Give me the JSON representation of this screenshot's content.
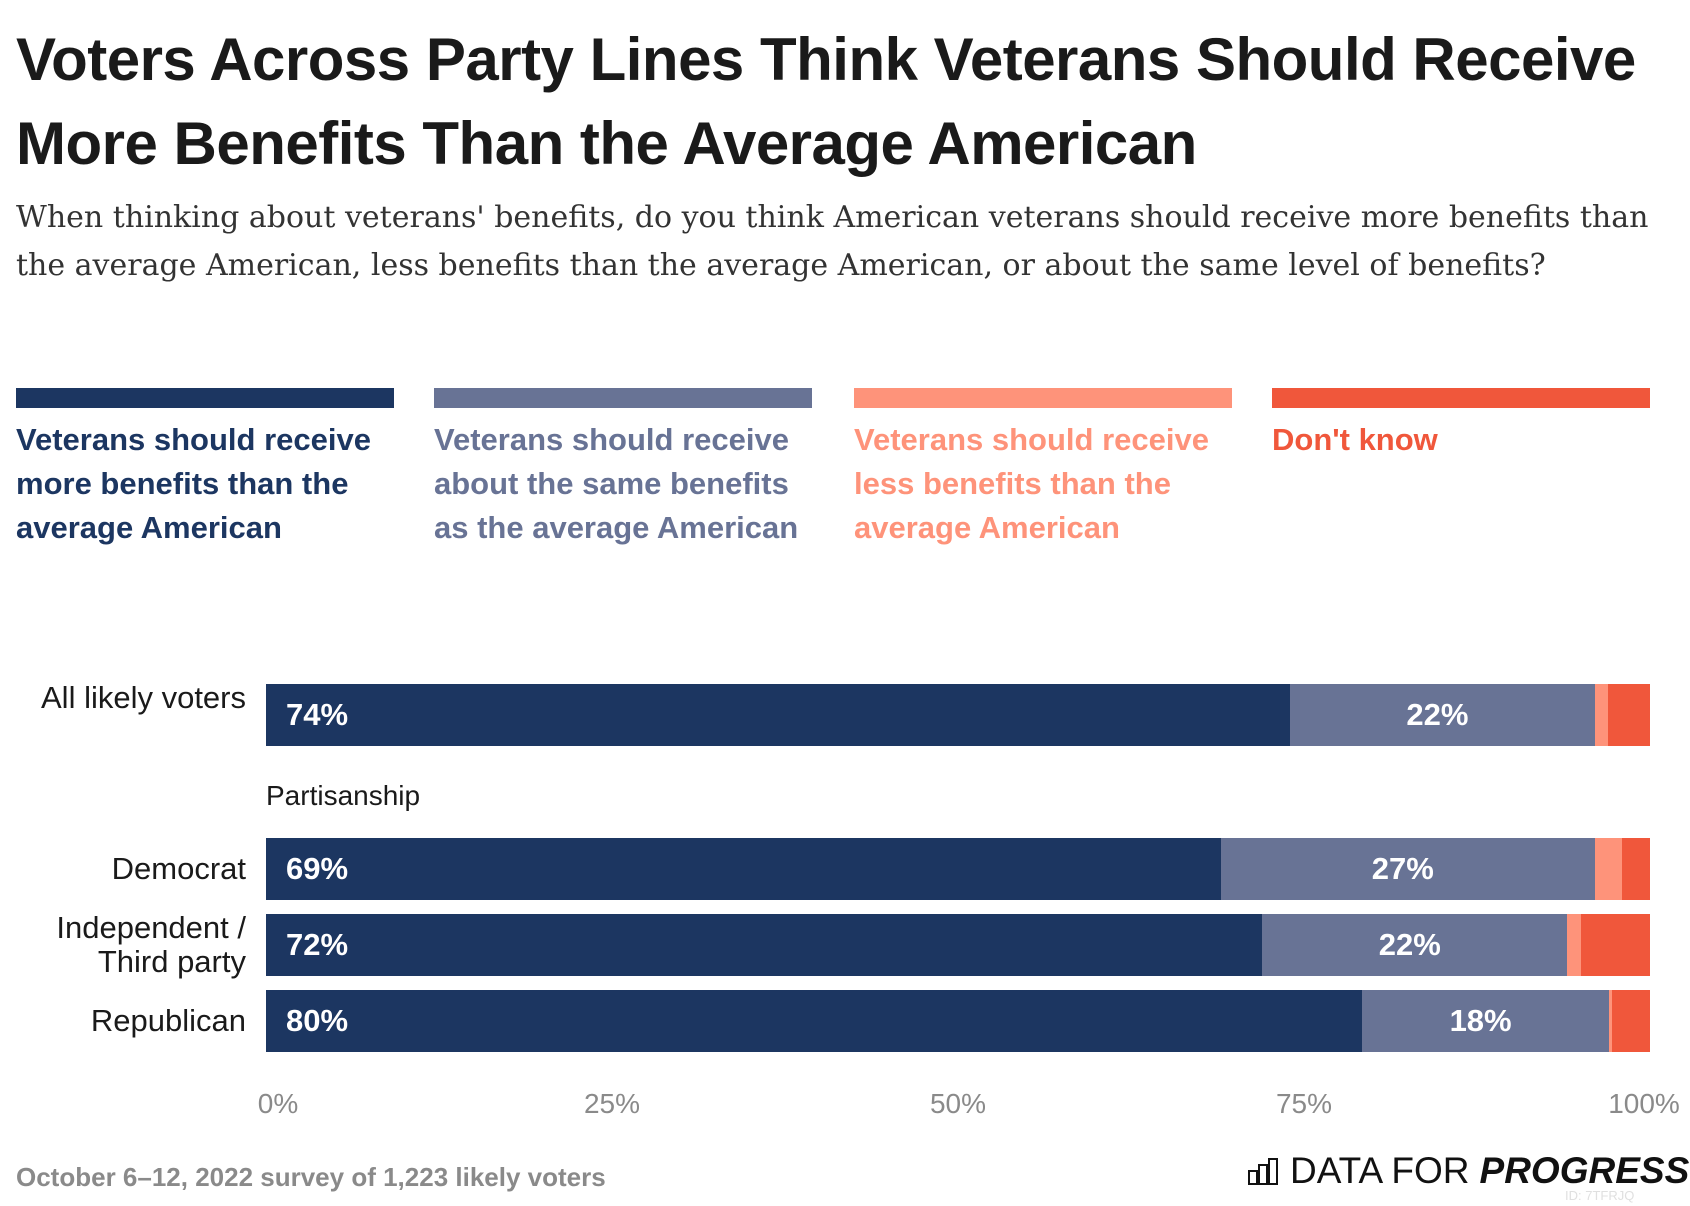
{
  "title": "Voters Across Party Lines Think Veterans Should Receive More Benefits Than the Average American",
  "subtitle": "When thinking about veterans' benefits, do you think American veterans should receive more benefits than the average American, less benefits than the average American, or about the same level of benefits?",
  "chart_data": {
    "type": "bar",
    "orientation": "horizontal-stacked",
    "series": [
      {
        "name": "Veterans should receive more benefits than the average American",
        "color": "#1c3661",
        "values": [
          74,
          69,
          72,
          80
        ]
      },
      {
        "name": "Veterans should receive about the same benefits as the average American",
        "color": "#687395",
        "values": [
          22,
          27,
          22,
          18
        ]
      },
      {
        "name": "Veterans should receive less benefits than the average American",
        "color": "#fe937a",
        "values": [
          1,
          2,
          1,
          0.2
        ]
      },
      {
        "name": "Don't know",
        "color": "#f0573b",
        "values": [
          3,
          2,
          5,
          2.8
        ]
      }
    ],
    "categories": [
      "All likely voters",
      "Democrat",
      "Independent / Third party",
      "Republican"
    ],
    "data_labels": [
      [
        "74%",
        "22%"
      ],
      [
        "69%",
        "27%"
      ],
      [
        "72%",
        "22%"
      ],
      [
        "80%",
        "18%"
      ]
    ],
    "group_label": "Partisanship",
    "xlim": [
      0,
      100
    ],
    "x_ticks": [
      "0%",
      "25%",
      "50%",
      "75%",
      "100%"
    ],
    "legend_position": "top",
    "grid": false
  },
  "footer": {
    "note": "October 6–12, 2022 survey of 1,223 likely voters",
    "logo_light": "DATA FOR",
    "logo_bold": "PROGRESS",
    "id": "ID: 7TFRJQ"
  }
}
